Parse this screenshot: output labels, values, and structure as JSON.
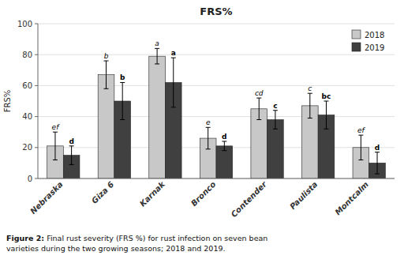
{
  "chart_data": {
    "type": "bar",
    "title": "FRS%",
    "y_label": "FRS%",
    "categories": [
      "Nebraska",
      "Giza 6",
      "Karnak",
      "Bronco",
      "Contender",
      "Paulista",
      "Montcalm"
    ],
    "series": [
      {
        "name": "2018",
        "color": "#c8c8c8",
        "values": [
          21,
          67,
          79,
          26,
          45,
          47,
          20
        ],
        "errors": [
          9,
          9,
          5,
          7,
          7,
          8,
          8
        ],
        "annotations": [
          "ef",
          "b",
          "a",
          "e",
          "cd",
          "c",
          "ef"
        ]
      },
      {
        "name": "2019",
        "color": "#404040",
        "values": [
          15,
          50,
          62,
          21,
          38,
          41,
          10
        ],
        "errors": [
          6,
          12,
          16,
          3,
          6,
          9,
          7
        ],
        "annotations": [
          "d",
          "b",
          "a",
          "d",
          "c",
          "bc",
          "d"
        ]
      }
    ],
    "ylim": [
      0,
      100
    ],
    "yticks": [
      0,
      20,
      40,
      60,
      80,
      100
    ],
    "grid": true,
    "legend": "upper right",
    "caption_label": "Figure 2:",
    "caption": " Final rust severity (FRS %) for rust infection on seven bean\nvarieties during the two growing seasons; 2018 and 2019."
  }
}
